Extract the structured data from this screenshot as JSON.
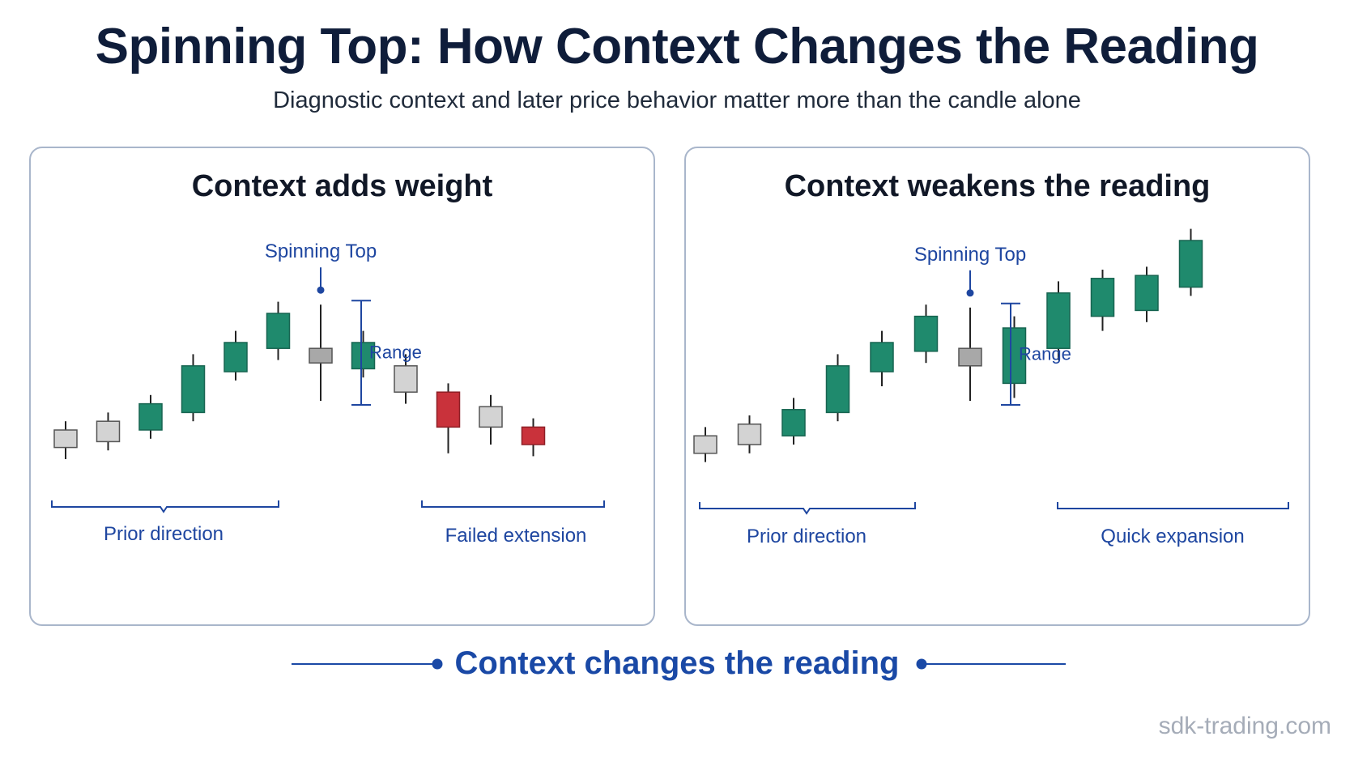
{
  "header": {
    "title": "Spinning Top: How Context Changes the Reading",
    "subtitle": "Diagnostic context and later price behavior matter more than the candle alone"
  },
  "panels": [
    {
      "title": "Context adds weight",
      "spinning_top_label": "Spinning Top",
      "range_label": "Range",
      "bracket_left_label": "Prior direction",
      "bracket_right_label": "Failed extension",
      "candles": [
        {
          "color": "gray",
          "open": 14,
          "close": 20,
          "low": 10,
          "high": 23
        },
        {
          "color": "gray",
          "open": 16,
          "close": 23,
          "low": 13,
          "high": 26
        },
        {
          "color": "green",
          "open": 20,
          "close": 29,
          "low": 17,
          "high": 32
        },
        {
          "color": "green",
          "open": 26,
          "close": 42,
          "low": 23,
          "high": 46
        },
        {
          "color": "green",
          "open": 40,
          "close": 50,
          "low": 37,
          "high": 54
        },
        {
          "color": "green",
          "open": 48,
          "close": 60,
          "low": 44,
          "high": 64
        },
        {
          "color": "dark-gray",
          "open": 43,
          "close": 48,
          "low": 30,
          "high": 63
        },
        {
          "color": "green",
          "open": 41,
          "close": 50,
          "low": 38,
          "high": 54
        },
        {
          "color": "gray",
          "open": 33,
          "close": 42,
          "low": 29,
          "high": 46
        },
        {
          "color": "red",
          "open": 33,
          "close": 21,
          "low": 12,
          "high": 36
        },
        {
          "color": "gray",
          "open": 21,
          "close": 28,
          "low": 15,
          "high": 32
        },
        {
          "color": "red",
          "open": 21,
          "close": 15,
          "low": 11,
          "high": 24
        }
      ],
      "spinning_top_index": 6
    },
    {
      "title": "Context weakens the reading",
      "spinning_top_label": "Spinning Top",
      "range_label": "Range",
      "bracket_left_label": "Prior direction",
      "bracket_right_label": "Quick expansion",
      "candles": [
        {
          "color": "gray",
          "open": 12,
          "close": 18,
          "low": 9,
          "high": 21
        },
        {
          "color": "gray",
          "open": 15,
          "close": 22,
          "low": 12,
          "high": 25
        },
        {
          "color": "green",
          "open": 18,
          "close": 27,
          "low": 15,
          "high": 31
        },
        {
          "color": "green",
          "open": 26,
          "close": 42,
          "low": 23,
          "high": 46
        },
        {
          "color": "green",
          "open": 40,
          "close": 50,
          "low": 35,
          "high": 54
        },
        {
          "color": "green",
          "open": 47,
          "close": 59,
          "low": 43,
          "high": 63
        },
        {
          "color": "dark-gray",
          "open": 42,
          "close": 48,
          "low": 30,
          "high": 62
        },
        {
          "color": "green",
          "open": 36,
          "close": 55,
          "low": 31,
          "high": 59
        },
        {
          "color": "green",
          "open": 48,
          "close": 67,
          "low": 44,
          "high": 71
        },
        {
          "color": "green",
          "open": 59,
          "close": 72,
          "low": 54,
          "high": 75
        },
        {
          "color": "green",
          "open": 61,
          "close": 73,
          "low": 57,
          "high": 76
        },
        {
          "color": "green",
          "open": 69,
          "close": 85,
          "low": 66,
          "high": 89
        }
      ],
      "spinning_top_index": 6
    }
  ],
  "footer": {
    "caption": "Context changes the reading",
    "watermark": "sdk-trading.com"
  },
  "colors": {
    "green": "#1f8a6d",
    "gray": "#d3d3d3",
    "dark-gray": "#a8a8a8",
    "red": "#c9323b",
    "accent_blue": "#1e46a0",
    "title_navy": "#0f1d3a"
  }
}
